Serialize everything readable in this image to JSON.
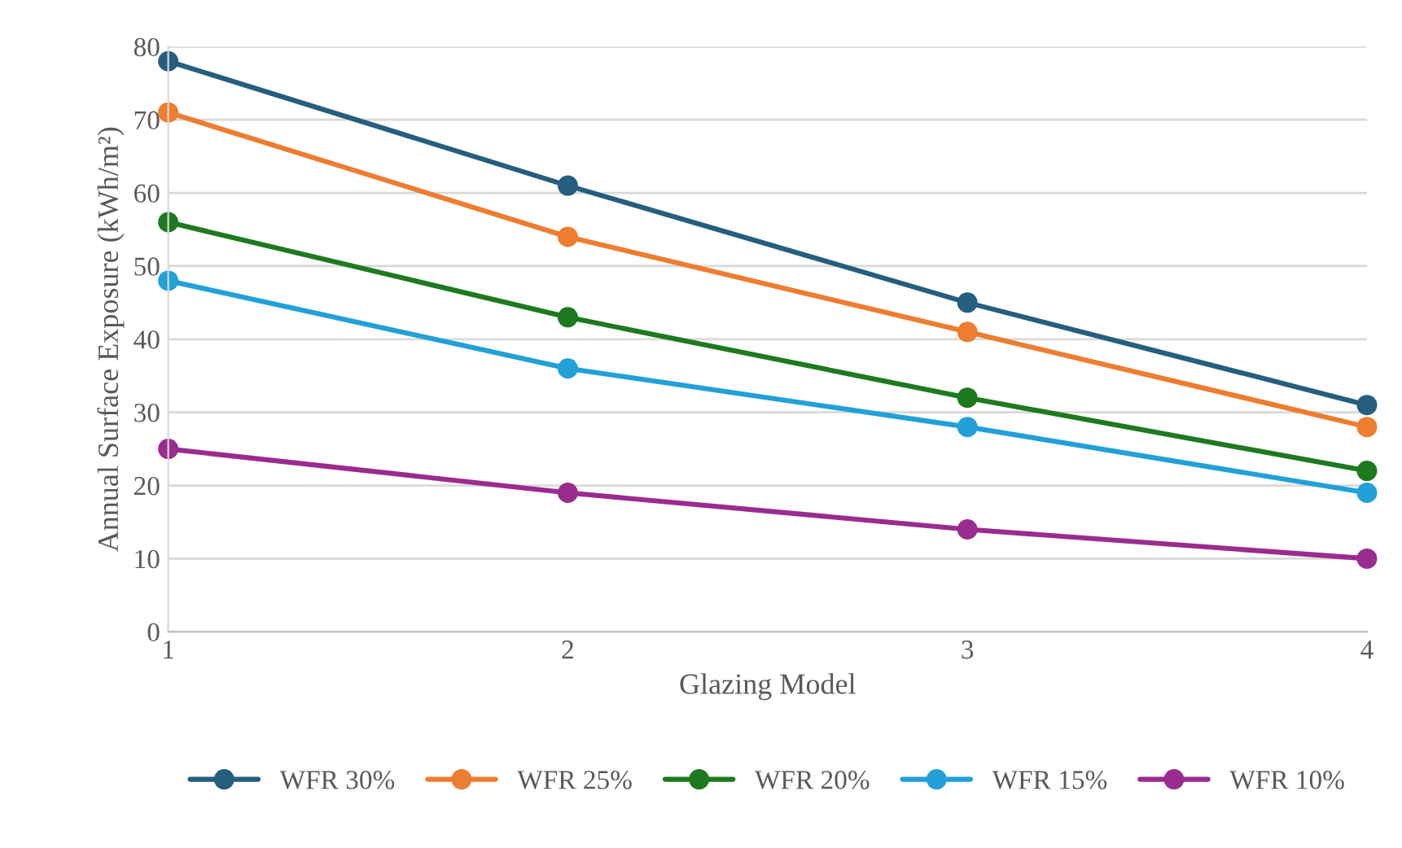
{
  "chart_data": {
    "type": "line",
    "xlabel": "Glazing Model",
    "ylabel": "Annual Surface Exposure (kWh/m²)",
    "x": [
      1,
      2,
      3,
      4
    ],
    "xlim": [
      1,
      4
    ],
    "xticks": [
      1,
      2,
      3,
      4
    ],
    "ylim": [
      0,
      80
    ],
    "yticks": [
      0,
      10,
      20,
      30,
      40,
      50,
      60,
      70,
      80
    ],
    "grid": "y",
    "legend": "bottom",
    "marker": "circle",
    "line_style": "solid",
    "series": [
      {
        "name": "WFR 30%",
        "color": "#255e7e",
        "values": [
          78,
          61,
          45,
          31
        ]
      },
      {
        "name": "WFR 25%",
        "color": "#ed7d31",
        "values": [
          71,
          54,
          41,
          28
        ]
      },
      {
        "name": "WFR 20%",
        "color": "#1e7a1e",
        "values": [
          56,
          43,
          32,
          22
        ]
      },
      {
        "name": "WFR 15%",
        "color": "#22a0d8",
        "values": [
          48,
          36,
          28,
          19
        ]
      },
      {
        "name": "WFR 10%",
        "color": "#9b2c8f",
        "values": [
          25,
          19,
          14,
          10
        ]
      }
    ]
  }
}
